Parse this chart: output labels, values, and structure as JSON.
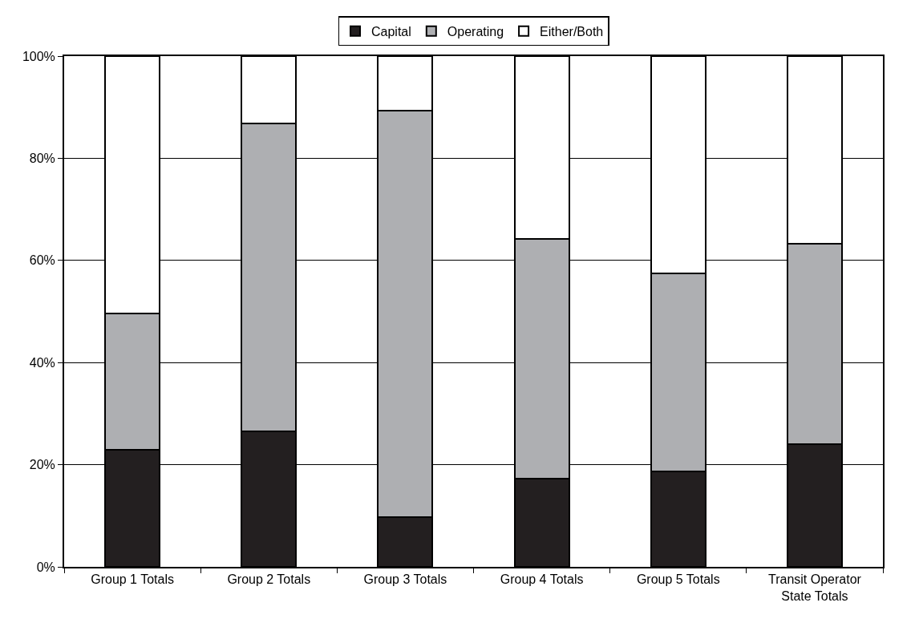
{
  "chart_data": {
    "type": "bar",
    "stacked": true,
    "categories": [
      "Group 1 Totals",
      "Group 2 Totals",
      "Group 3 Totals",
      "Group 4 Totals",
      "Group 5 Totals",
      "Transit Operator\nState Totals"
    ],
    "series": [
      {
        "name": "Capital",
        "color": "#231f20",
        "values": [
          22.9,
          26.6,
          9.7,
          17.3,
          18.7,
          24.0
        ]
      },
      {
        "name": "Operating",
        "color": "#aeafb2",
        "values": [
          26.7,
          60.2,
          79.7,
          46.9,
          38.7,
          39.3
        ]
      },
      {
        "name": "Either/Both",
        "color": "#ffffff",
        "values": [
          50.4,
          13.2,
          10.6,
          35.8,
          42.6,
          36.7
        ]
      }
    ],
    "ylim": [
      0,
      100
    ],
    "yticks": [
      {
        "value": 0,
        "label": "0%"
      },
      {
        "value": 20,
        "label": "20%"
      },
      {
        "value": 40,
        "label": "40%"
      },
      {
        "value": 60,
        "label": "60%"
      },
      {
        "value": 80,
        "label": "80%"
      },
      {
        "value": 100,
        "label": "100%"
      }
    ],
    "grid": "y",
    "legend": "top"
  }
}
